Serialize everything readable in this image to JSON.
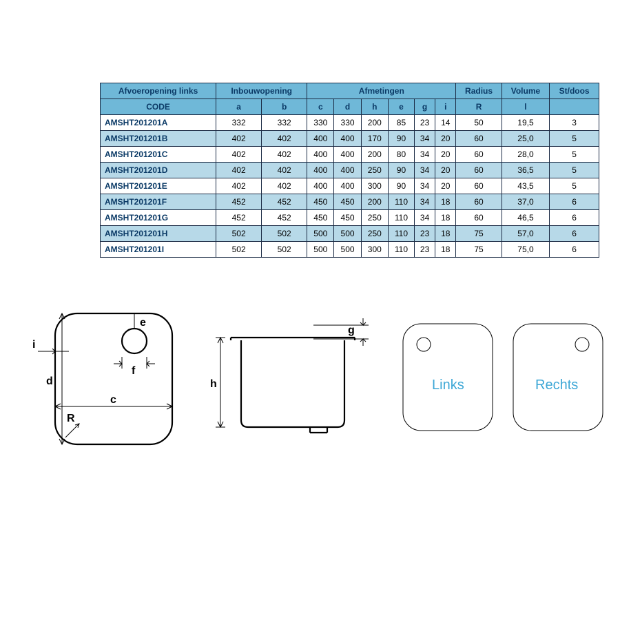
{
  "colors": {
    "header_bg": "#6fb8d8",
    "header_text": "#0b3a66",
    "row_alt_bg": "#b7d9e8",
    "row_bg": "#ffffff",
    "border": "#1a2a44",
    "diagram_label": "#3da7d6"
  },
  "table": {
    "group1_title": "Afvoeropening links",
    "group1_sub": "CODE",
    "group2_title": "Inbouwopening",
    "group3_title": "Afmetingen",
    "group4_title": "Radius",
    "group5_title": "Volume",
    "group6_title": "St/doos",
    "sub_cols": [
      "a",
      "b",
      "c",
      "d",
      "h",
      "e",
      "g",
      "i",
      "R",
      "l",
      ""
    ],
    "rows": [
      {
        "code": "AMSHT201201A",
        "a": "332",
        "b": "332",
        "c": "330",
        "d": "330",
        "h": "200",
        "e": "85",
        "g": "23",
        "i": "14",
        "R": "50",
        "l": "19,5",
        "st": "3"
      },
      {
        "code": "AMSHT201201B",
        "a": "402",
        "b": "402",
        "c": "400",
        "d": "400",
        "h": "170",
        "e": "90",
        "g": "34",
        "i": "20",
        "R": "60",
        "l": "25,0",
        "st": "5"
      },
      {
        "code": "AMSHT201201C",
        "a": "402",
        "b": "402",
        "c": "400",
        "d": "400",
        "h": "200",
        "e": "80",
        "g": "34",
        "i": "20",
        "R": "60",
        "l": "28,0",
        "st": "5"
      },
      {
        "code": "AMSHT201201D",
        "a": "402",
        "b": "402",
        "c": "400",
        "d": "400",
        "h": "250",
        "e": "90",
        "g": "34",
        "i": "20",
        "R": "60",
        "l": "36,5",
        "st": "5"
      },
      {
        "code": "AMSHT201201E",
        "a": "402",
        "b": "402",
        "c": "400",
        "d": "400",
        "h": "300",
        "e": "90",
        "g": "34",
        "i": "20",
        "R": "60",
        "l": "43,5",
        "st": "5"
      },
      {
        "code": "AMSHT201201F",
        "a": "452",
        "b": "452",
        "c": "450",
        "d": "450",
        "h": "200",
        "e": "110",
        "g": "34",
        "i": "18",
        "R": "60",
        "l": "37,0",
        "st": "6"
      },
      {
        "code": "AMSHT201201G",
        "a": "452",
        "b": "452",
        "c": "450",
        "d": "450",
        "h": "250",
        "e": "110",
        "g": "34",
        "i": "18",
        "R": "60",
        "l": "46,5",
        "st": "6"
      },
      {
        "code": "AMSHT201201H",
        "a": "502",
        "b": "502",
        "c": "500",
        "d": "500",
        "h": "250",
        "e": "110",
        "g": "23",
        "i": "18",
        "R": "75",
        "l": "57,0",
        "st": "6"
      },
      {
        "code": "AMSHT201201I",
        "a": "502",
        "b": "502",
        "c": "500",
        "d": "500",
        "h": "300",
        "e": "110",
        "g": "23",
        "i": "18",
        "R": "75",
        "l": "75,0",
        "st": "6"
      }
    ]
  },
  "diagram": {
    "labels": {
      "e": "e",
      "f": "f",
      "i": "i",
      "d": "d",
      "c": "c",
      "R": "R",
      "g": "g",
      "h": "h",
      "links": "Links",
      "rechts": "Rechts"
    }
  }
}
